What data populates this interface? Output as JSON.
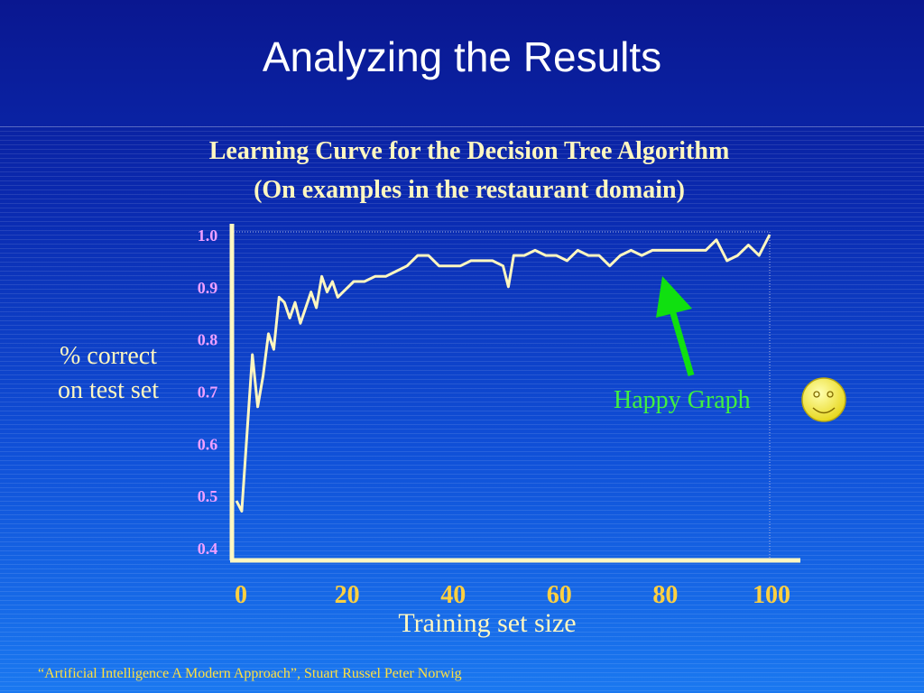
{
  "slide": {
    "title": "Analyzing the Results",
    "footer": "“Artificial Intelligence A Modern Approach”, Stuart Russel  Peter Norwig"
  },
  "colors": {
    "curve": "#fff7c0",
    "axis": "#fff7c0",
    "y_tick_labels": "#f0a0ff",
    "x_tick_labels": "#ffd040",
    "arrow": "#10e010",
    "annotation": "#40f040"
  },
  "chart_data": {
    "type": "line",
    "title_line1": "Learning Curve for the Decision Tree Algorithm",
    "title_line2": "(On examples in the restaurant domain)",
    "xlabel": "Training set size",
    "ylabel_line1": "% correct",
    "ylabel_line2": "on test set",
    "xlim": [
      0,
      100
    ],
    "ylim": [
      0.4,
      1.0
    ],
    "x_ticks": [
      "0",
      "20",
      "40",
      "60",
      "80",
      "100"
    ],
    "y_ticks": [
      "0.4",
      "0.5",
      "0.6",
      "0.7",
      "0.8",
      "0.9",
      "1.0"
    ],
    "grid": false,
    "series": [
      {
        "x": [
          0,
          1,
          2,
          3,
          4,
          5,
          6,
          7,
          8,
          9,
          10,
          11,
          12,
          13,
          14,
          15,
          16,
          17,
          18,
          19,
          20,
          22,
          24,
          26,
          28,
          30,
          32,
          34,
          36,
          38,
          40,
          42,
          44,
          46,
          48,
          50,
          51,
          52,
          54,
          56,
          58,
          60,
          62,
          64,
          66,
          68,
          70,
          72,
          74,
          76,
          78,
          80,
          82,
          84,
          86,
          88,
          90,
          92,
          94,
          96,
          98,
          100
        ],
        "y": [
          0.49,
          0.47,
          0.62,
          0.77,
          0.67,
          0.73,
          0.81,
          0.78,
          0.88,
          0.87,
          0.84,
          0.87,
          0.83,
          0.86,
          0.89,
          0.86,
          0.92,
          0.89,
          0.91,
          0.88,
          0.89,
          0.91,
          0.91,
          0.92,
          0.92,
          0.93,
          0.94,
          0.96,
          0.96,
          0.94,
          0.94,
          0.94,
          0.95,
          0.95,
          0.95,
          0.94,
          0.9,
          0.96,
          0.96,
          0.97,
          0.96,
          0.96,
          0.95,
          0.97,
          0.96,
          0.96,
          0.94,
          0.96,
          0.97,
          0.96,
          0.97,
          0.97,
          0.97,
          0.97,
          0.97,
          0.97,
          0.99,
          0.95,
          0.96,
          0.98,
          0.96,
          1.0
        ]
      }
    ],
    "annotation": "Happy Graph"
  }
}
